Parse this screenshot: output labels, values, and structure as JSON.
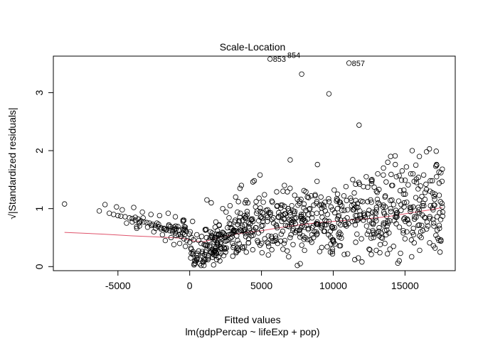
{
  "chart_data": {
    "type": "scatter",
    "title": "Scale-Location",
    "xlabel": "Fitted values",
    "sublabel": "lm(gdpPercap ~ lifeExp + pop)",
    "ylabel": "√|Standardized residuals|",
    "xlim": [
      -9500,
      18500
    ],
    "ylim": [
      -0.07,
      3.63
    ],
    "grid": false,
    "x_ticks": [
      {
        "value": -5000,
        "label": "-5000"
      },
      {
        "value": 0,
        "label": "0"
      },
      {
        "value": 5000,
        "label": "5000"
      },
      {
        "value": 10000,
        "label": "10000"
      },
      {
        "value": 15000,
        "label": "15000"
      }
    ],
    "y_ticks": [
      {
        "value": 0,
        "label": "0"
      },
      {
        "value": 1,
        "label": "1"
      },
      {
        "value": 2,
        "label": "2"
      },
      {
        "value": 3,
        "label": "3"
      }
    ],
    "point_color": "#000000",
    "smooth_color": "#DF536B",
    "points": [
      [
        -8720,
        1.08
      ],
      [
        -6300,
        0.96
      ],
      [
        -5900,
        1.07
      ],
      [
        -5600,
        0.92
      ],
      [
        -5300,
        0.9
      ],
      [
        -5000,
        0.88
      ],
      [
        -4800,
        0.87
      ],
      [
        -4500,
        0.86
      ],
      [
        -4200,
        0.84
      ],
      [
        -4000,
        0.83
      ],
      [
        -3800,
        0.8
      ],
      [
        -3600,
        0.82
      ],
      [
        -3400,
        0.79
      ],
      [
        -3200,
        0.77
      ],
      [
        -3000,
        0.76
      ],
      [
        -2800,
        0.75
      ],
      [
        -2600,
        0.73
      ],
      [
        -2400,
        0.71
      ],
      [
        -2200,
        0.69
      ],
      [
        -2000,
        0.67
      ],
      [
        -1800,
        0.66
      ],
      [
        -1600,
        0.64
      ],
      [
        -1400,
        0.62
      ],
      [
        -1200,
        0.6
      ],
      [
        -1000,
        0.58
      ],
      [
        -800,
        0.55
      ],
      [
        -600,
        0.52
      ],
      [
        -400,
        0.48
      ],
      [
        -200,
        0.45
      ],
      [
        0,
        0.42
      ],
      [
        -5100,
        1.03
      ],
      [
        -4700,
        0.98
      ],
      [
        -3900,
        1.02
      ],
      [
        -3300,
        0.94
      ],
      [
        -2700,
        0.9
      ],
      [
        -2100,
        0.88
      ],
      [
        -1500,
        0.92
      ],
      [
        -1000,
        0.86
      ],
      [
        -400,
        0.8
      ],
      [
        200,
        0.78
      ],
      [
        -1900,
        0.55
      ],
      [
        -1300,
        0.5
      ],
      [
        -700,
        0.4
      ],
      [
        -300,
        0.35
      ],
      [
        100,
        0.3
      ],
      [
        -2500,
        0.6
      ],
      [
        -3500,
        0.7
      ],
      [
        -4400,
        0.75
      ],
      [
        -1700,
        0.45
      ],
      [
        -1100,
        0.38
      ],
      [
        1200,
        1.15
      ],
      [
        1500,
        1.1
      ],
      [
        2300,
        1.0
      ],
      [
        3200,
        1.2
      ],
      [
        3500,
        1.35
      ],
      [
        3600,
        1.4
      ],
      [
        4400,
        1.46
      ],
      [
        4500,
        1.48
      ],
      [
        4900,
        1.58
      ],
      [
        6100,
        1.05
      ],
      [
        6600,
        1.4
      ],
      [
        7000,
        1.84
      ],
      [
        8200,
        1.2
      ],
      [
        8900,
        1.76
      ],
      [
        10300,
        1.25
      ],
      [
        12300,
        1.55
      ],
      [
        12700,
        1.5
      ],
      [
        13100,
        1.6
      ],
      [
        13500,
        1.7
      ],
      [
        13800,
        1.8
      ],
      [
        14000,
        1.9
      ],
      [
        14400,
        1.55
      ],
      [
        14800,
        1.65
      ],
      [
        15100,
        1.72
      ],
      [
        15400,
        1.6
      ],
      [
        15500,
        2.0
      ],
      [
        15800,
        1.45
      ],
      [
        16000,
        1.9
      ],
      [
        16300,
        1.58
      ],
      [
        16500,
        1.98
      ],
      [
        16700,
        2.03
      ],
      [
        16900,
        1.48
      ],
      [
        17200,
        1.55
      ],
      [
        17500,
        1.62
      ],
      [
        17600,
        1.68
      ],
      [
        5600,
        3.58
      ],
      [
        6600,
        3.65
      ],
      [
        7800,
        3.32
      ],
      [
        9700,
        2.98
      ],
      [
        11100,
        3.51
      ],
      [
        11800,
        2.44
      ],
      [
        700,
        0.05
      ],
      [
        900,
        0.08
      ],
      [
        1100,
        0.12
      ],
      [
        1300,
        0.15
      ],
      [
        1700,
        0.2
      ],
      [
        2100,
        0.1
      ],
      [
        2500,
        0.25
      ],
      [
        3000,
        0.18
      ],
      [
        3400,
        0.3
      ],
      [
        7500,
        0.02
      ],
      [
        7700,
        0.05
      ],
      [
        12000,
        0.08
      ],
      [
        14500,
        0.06
      ],
      [
        14600,
        0.1
      ],
      [
        11500,
        0.12
      ],
      [
        5000,
        0.4
      ],
      [
        5500,
        0.35
      ],
      [
        6000,
        0.45
      ],
      [
        6500,
        0.3
      ],
      [
        7200,
        0.38
      ],
      [
        8000,
        0.28
      ],
      [
        8500,
        0.42
      ],
      [
        9200,
        0.33
      ],
      [
        9800,
        0.25
      ],
      [
        10500,
        0.36
      ],
      [
        11000,
        0.22
      ],
      [
        12500,
        0.3
      ],
      [
        13000,
        0.28
      ],
      [
        13600,
        0.4
      ],
      [
        14200,
        0.35
      ],
      [
        15000,
        0.48
      ],
      [
        15600,
        0.55
      ],
      [
        16100,
        0.6
      ],
      [
        16600,
        0.7
      ],
      [
        17000,
        0.75
      ]
    ],
    "annotations": [
      {
        "label": "853",
        "x": 5600,
        "y": 3.58
      },
      {
        "label": "854",
        "x": 6600,
        "y": 3.65
      },
      {
        "label": "857",
        "x": 11100,
        "y": 3.51
      }
    ],
    "smooth_line": [
      [
        -8720,
        0.59
      ],
      [
        -6000,
        0.56
      ],
      [
        -4000,
        0.53
      ],
      [
        -2000,
        0.51
      ],
      [
        -500,
        0.49
      ],
      [
        300,
        0.44
      ],
      [
        1000,
        0.43
      ],
      [
        2000,
        0.5
      ],
      [
        3000,
        0.55
      ],
      [
        4000,
        0.59
      ],
      [
        5000,
        0.62
      ],
      [
        6000,
        0.66
      ],
      [
        7000,
        0.7
      ],
      [
        8000,
        0.73
      ],
      [
        9000,
        0.76
      ],
      [
        10000,
        0.78
      ],
      [
        11000,
        0.8
      ],
      [
        12000,
        0.82
      ],
      [
        13000,
        0.84
      ],
      [
        14000,
        0.87
      ],
      [
        15000,
        0.91
      ],
      [
        16000,
        0.95
      ],
      [
        17000,
        0.99
      ],
      [
        17600,
        1.02
      ]
    ]
  }
}
